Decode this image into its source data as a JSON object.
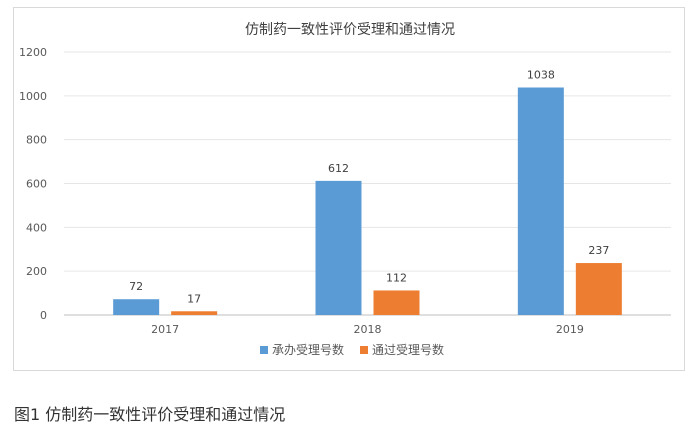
{
  "chart_data": {
    "type": "bar",
    "title": "仿制药一致性评价受理和通过情况",
    "categories": [
      "2017",
      "2018",
      "2019"
    ],
    "series": [
      {
        "name": "承办受理号数",
        "values": [
          72,
          612,
          1038
        ],
        "color": "#5b9bd5"
      },
      {
        "name": "通过受理号数",
        "values": [
          17,
          112,
          237
        ],
        "color": "#ed7d31"
      }
    ],
    "ylim": [
      0,
      1200
    ],
    "yticks": [
      0,
      200,
      400,
      600,
      800,
      1000,
      1200
    ],
    "grid": true,
    "legend_position": "bottom"
  },
  "caption": "图1 仿制药一致性评价受理和通过情况"
}
